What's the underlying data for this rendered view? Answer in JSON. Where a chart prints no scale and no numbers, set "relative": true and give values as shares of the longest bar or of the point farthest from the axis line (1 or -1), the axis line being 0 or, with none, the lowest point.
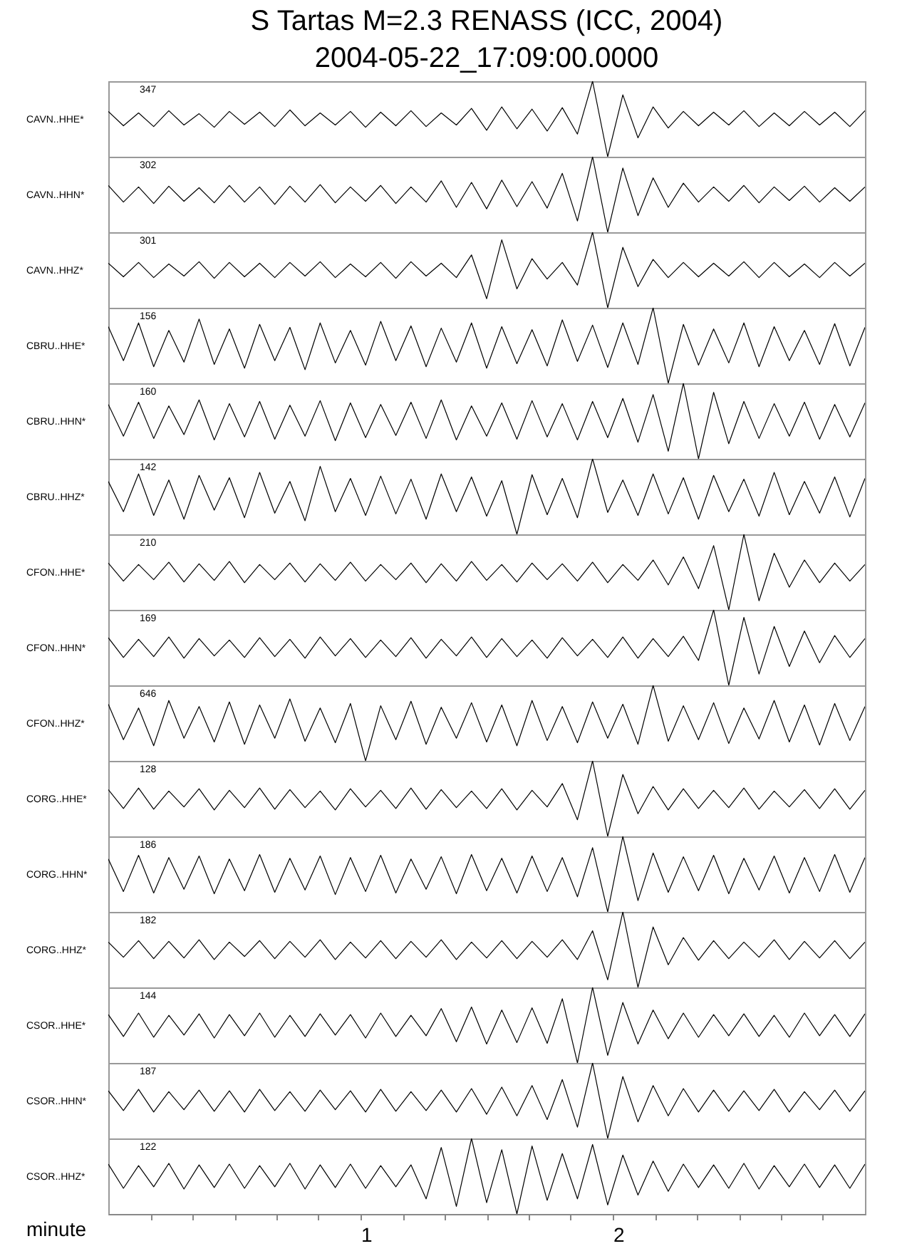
{
  "chart_data": [
    {
      "type": "line",
      "title": "S Tartas M=2.3 RENASS (ICC, 2004)",
      "subtitle": "2004-05-22_17:09:00.0000",
      "relative": true,
      "ylabel": "CAVN..HHE*",
      "annotations": [
        "347"
      ],
      "tick_labels": false,
      "xlim": [
        0,
        3
      ],
      "color": "#000000",
      "x": [
        0,
        0.06,
        0.12,
        0.18,
        0.24,
        0.3,
        0.36,
        0.42,
        0.48,
        0.54,
        0.6,
        0.66,
        0.72,
        0.78,
        0.84,
        0.9,
        0.96,
        1.02,
        1.08,
        1.14,
        1.2,
        1.26,
        1.32,
        1.38,
        1.44,
        1.5,
        1.56,
        1.62,
        1.68,
        1.74,
        1.8,
        1.86,
        1.92,
        1.98,
        2.04,
        2.1,
        2.16,
        2.22,
        2.28,
        2.34,
        2.4,
        2.46,
        2.52,
        2.58,
        2.64,
        2.7,
        2.76,
        2.82,
        2.88,
        2.94,
        3
      ],
      "values": [
        0.6,
        0.41,
        0.58,
        0.4,
        0.61,
        0.42,
        0.57,
        0.39,
        0.6,
        0.43,
        0.59,
        0.4,
        0.62,
        0.41,
        0.58,
        0.42,
        0.6,
        0.39,
        0.59,
        0.41,
        0.61,
        0.4,
        0.58,
        0.42,
        0.64,
        0.35,
        0.66,
        0.37,
        0.63,
        0.34,
        0.65,
        0.3,
        1.0,
        0.0,
        0.82,
        0.25,
        0.66,
        0.38,
        0.6,
        0.41,
        0.59,
        0.42,
        0.61,
        0.4,
        0.58,
        0.41,
        0.6,
        0.42,
        0.59,
        0.4,
        0.61
      ]
    },
    {
      "type": "line",
      "relative": true,
      "ylabel": "CAVN..HHN*",
      "annotations": [
        "302"
      ],
      "tick_labels": false,
      "xlim": [
        0,
        3
      ],
      "color": "#000000",
      "x": [
        0,
        0.06,
        0.12,
        0.18,
        0.24,
        0.3,
        0.36,
        0.42,
        0.48,
        0.54,
        0.6,
        0.66,
        0.72,
        0.78,
        0.84,
        0.9,
        0.96,
        1.02,
        1.08,
        1.14,
        1.2,
        1.26,
        1.32,
        1.38,
        1.44,
        1.5,
        1.56,
        1.62,
        1.68,
        1.74,
        1.8,
        1.86,
        1.92,
        1.98,
        2.04,
        2.1,
        2.16,
        2.22,
        2.28,
        2.34,
        2.4,
        2.46,
        2.52,
        2.58,
        2.64,
        2.7,
        2.76,
        2.82,
        2.88,
        2.94,
        3
      ],
      "values": [
        0.62,
        0.4,
        0.6,
        0.38,
        0.61,
        0.41,
        0.59,
        0.39,
        0.62,
        0.4,
        0.6,
        0.37,
        0.61,
        0.4,
        0.63,
        0.39,
        0.6,
        0.41,
        0.62,
        0.38,
        0.6,
        0.4,
        0.68,
        0.33,
        0.66,
        0.31,
        0.69,
        0.34,
        0.67,
        0.32,
        0.78,
        0.15,
        1.0,
        0.0,
        0.85,
        0.22,
        0.72,
        0.33,
        0.65,
        0.4,
        0.6,
        0.41,
        0.62,
        0.39,
        0.6,
        0.42,
        0.61,
        0.4,
        0.59,
        0.41,
        0.6
      ]
    },
    {
      "type": "line",
      "relative": true,
      "ylabel": "CAVN..HHZ*",
      "annotations": [
        "301"
      ],
      "tick_labels": false,
      "xlim": [
        0,
        3
      ],
      "color": "#000000",
      "x": [
        0,
        0.06,
        0.12,
        0.18,
        0.24,
        0.3,
        0.36,
        0.42,
        0.48,
        0.54,
        0.6,
        0.66,
        0.72,
        0.78,
        0.84,
        0.9,
        0.96,
        1.02,
        1.08,
        1.14,
        1.2,
        1.26,
        1.32,
        1.38,
        1.44,
        1.5,
        1.56,
        1.62,
        1.68,
        1.74,
        1.8,
        1.86,
        1.92,
        1.98,
        2.04,
        2.1,
        2.16,
        2.22,
        2.28,
        2.34,
        2.4,
        2.46,
        2.52,
        2.58,
        2.64,
        2.7,
        2.76,
        2.82,
        2.88,
        2.94,
        3
      ],
      "values": [
        0.59,
        0.41,
        0.6,
        0.4,
        0.58,
        0.42,
        0.61,
        0.39,
        0.6,
        0.41,
        0.59,
        0.4,
        0.6,
        0.42,
        0.61,
        0.4,
        0.58,
        0.41,
        0.6,
        0.39,
        0.61,
        0.42,
        0.59,
        0.4,
        0.7,
        0.12,
        0.9,
        0.25,
        0.65,
        0.38,
        0.6,
        0.3,
        1.0,
        0.0,
        0.8,
        0.28,
        0.64,
        0.4,
        0.6,
        0.41,
        0.59,
        0.42,
        0.61,
        0.4,
        0.6,
        0.41,
        0.58,
        0.4,
        0.6,
        0.42,
        0.59
      ]
    },
    {
      "type": "line",
      "relative": true,
      "ylabel": "CBRU..HHE*",
      "annotations": [
        "156"
      ],
      "tick_labels": false,
      "xlim": [
        0,
        3
      ],
      "color": "#000000",
      "x": [
        0,
        0.06,
        0.12,
        0.18,
        0.24,
        0.3,
        0.36,
        0.42,
        0.48,
        0.54,
        0.6,
        0.66,
        0.72,
        0.78,
        0.84,
        0.9,
        0.96,
        1.02,
        1.08,
        1.14,
        1.2,
        1.26,
        1.32,
        1.38,
        1.44,
        1.5,
        1.56,
        1.62,
        1.68,
        1.74,
        1.8,
        1.86,
        1.92,
        1.98,
        2.04,
        2.1,
        2.16,
        2.22,
        2.28,
        2.34,
        2.4,
        2.46,
        2.52,
        2.58,
        2.64,
        2.7,
        2.76,
        2.82,
        2.88,
        2.94,
        3
      ],
      "values": [
        0.75,
        0.3,
        0.8,
        0.22,
        0.7,
        0.28,
        0.85,
        0.25,
        0.72,
        0.2,
        0.78,
        0.3,
        0.74,
        0.18,
        0.8,
        0.27,
        0.7,
        0.24,
        0.82,
        0.3,
        0.76,
        0.22,
        0.73,
        0.28,
        0.8,
        0.2,
        0.75,
        0.26,
        0.71,
        0.23,
        0.84,
        0.29,
        0.77,
        0.21,
        0.8,
        0.25,
        1.0,
        0.0,
        0.78,
        0.24,
        0.72,
        0.27,
        0.8,
        0.22,
        0.75,
        0.3,
        0.7,
        0.25,
        0.79,
        0.23,
        0.74
      ]
    },
    {
      "type": "line",
      "relative": true,
      "ylabel": "CBRU..HHN*",
      "annotations": [
        "160"
      ],
      "tick_labels": false,
      "xlim": [
        0,
        3
      ],
      "color": "#000000",
      "x": [
        0,
        0.06,
        0.12,
        0.18,
        0.24,
        0.3,
        0.36,
        0.42,
        0.48,
        0.54,
        0.6,
        0.66,
        0.72,
        0.78,
        0.84,
        0.9,
        0.96,
        1.02,
        1.08,
        1.14,
        1.2,
        1.26,
        1.32,
        1.38,
        1.44,
        1.5,
        1.56,
        1.62,
        1.68,
        1.74,
        1.8,
        1.86,
        1.92,
        1.98,
        2.04,
        2.1,
        2.16,
        2.22,
        2.28,
        2.34,
        2.4,
        2.46,
        2.52,
        2.58,
        2.64,
        2.7,
        2.76,
        2.82,
        2.88,
        2.94,
        3
      ],
      "values": [
        0.72,
        0.3,
        0.75,
        0.27,
        0.7,
        0.32,
        0.78,
        0.25,
        0.73,
        0.29,
        0.76,
        0.26,
        0.71,
        0.3,
        0.77,
        0.24,
        0.74,
        0.28,
        0.72,
        0.31,
        0.75,
        0.27,
        0.78,
        0.25,
        0.7,
        0.3,
        0.74,
        0.26,
        0.77,
        0.29,
        0.73,
        0.25,
        0.76,
        0.28,
        0.8,
        0.22,
        0.85,
        0.1,
        1.0,
        0.0,
        0.88,
        0.2,
        0.76,
        0.27,
        0.73,
        0.3,
        0.75,
        0.26,
        0.72,
        0.29,
        0.74
      ]
    },
    {
      "type": "line",
      "relative": true,
      "ylabel": "CBRU..HHZ*",
      "annotations": [
        "142"
      ],
      "tick_labels": false,
      "xlim": [
        0,
        3
      ],
      "color": "#000000",
      "x": [
        0,
        0.06,
        0.12,
        0.18,
        0.24,
        0.3,
        0.36,
        0.42,
        0.48,
        0.54,
        0.6,
        0.66,
        0.72,
        0.78,
        0.84,
        0.9,
        0.96,
        1.02,
        1.08,
        1.14,
        1.2,
        1.26,
        1.32,
        1.38,
        1.44,
        1.5,
        1.56,
        1.62,
        1.68,
        1.74,
        1.8,
        1.86,
        1.92,
        1.98,
        2.04,
        2.1,
        2.16,
        2.22,
        2.28,
        2.34,
        2.4,
        2.46,
        2.52,
        2.58,
        2.64,
        2.7,
        2.76,
        2.82,
        2.88,
        2.94,
        3
      ],
      "values": [
        0.7,
        0.3,
        0.8,
        0.25,
        0.72,
        0.2,
        0.78,
        0.32,
        0.75,
        0.22,
        0.82,
        0.28,
        0.7,
        0.18,
        0.9,
        0.3,
        0.74,
        0.25,
        0.77,
        0.27,
        0.73,
        0.2,
        0.8,
        0.3,
        0.76,
        0.24,
        0.71,
        0.0,
        0.79,
        0.26,
        0.74,
        0.22,
        1.0,
        0.29,
        0.72,
        0.25,
        0.8,
        0.27,
        0.75,
        0.2,
        0.78,
        0.3,
        0.73,
        0.24,
        0.82,
        0.26,
        0.7,
        0.28,
        0.76,
        0.23,
        0.74
      ]
    },
    {
      "type": "line",
      "relative": true,
      "ylabel": "CFON..HHE*",
      "annotations": [
        "210"
      ],
      "tick_labels": false,
      "xlim": [
        0,
        3
      ],
      "color": "#000000",
      "x": [
        0,
        0.06,
        0.12,
        0.18,
        0.24,
        0.3,
        0.36,
        0.42,
        0.48,
        0.54,
        0.6,
        0.66,
        0.72,
        0.78,
        0.84,
        0.9,
        0.96,
        1.02,
        1.08,
        1.14,
        1.2,
        1.26,
        1.32,
        1.38,
        1.44,
        1.5,
        1.56,
        1.62,
        1.68,
        1.74,
        1.8,
        1.86,
        1.92,
        1.98,
        2.04,
        2.1,
        2.16,
        2.22,
        2.28,
        2.34,
        2.4,
        2.46,
        2.52,
        2.58,
        2.64,
        2.7,
        2.76,
        2.82,
        2.88,
        2.94,
        3
      ],
      "values": [
        0.62,
        0.38,
        0.6,
        0.4,
        0.63,
        0.37,
        0.61,
        0.39,
        0.64,
        0.36,
        0.6,
        0.4,
        0.62,
        0.37,
        0.61,
        0.39,
        0.63,
        0.38,
        0.6,
        0.4,
        0.62,
        0.36,
        0.61,
        0.38,
        0.64,
        0.39,
        0.6,
        0.37,
        0.62,
        0.4,
        0.61,
        0.38,
        0.63,
        0.36,
        0.6,
        0.39,
        0.66,
        0.33,
        0.7,
        0.28,
        0.85,
        0.0,
        1.0,
        0.12,
        0.75,
        0.3,
        0.66,
        0.36,
        0.62,
        0.38,
        0.6
      ]
    },
    {
      "type": "line",
      "relative": true,
      "ylabel": "CFON..HHN*",
      "annotations": [
        "169"
      ],
      "tick_labels": false,
      "xlim": [
        0,
        3
      ],
      "color": "#000000",
      "x": [
        0,
        0.06,
        0.12,
        0.18,
        0.24,
        0.3,
        0.36,
        0.42,
        0.48,
        0.54,
        0.6,
        0.66,
        0.72,
        0.78,
        0.84,
        0.9,
        0.96,
        1.02,
        1.08,
        1.14,
        1.2,
        1.26,
        1.32,
        1.38,
        1.44,
        1.5,
        1.56,
        1.62,
        1.68,
        1.74,
        1.8,
        1.86,
        1.92,
        1.98,
        2.04,
        2.1,
        2.16,
        2.22,
        2.28,
        2.34,
        2.4,
        2.46,
        2.52,
        2.58,
        2.64,
        2.7,
        2.76,
        2.82,
        2.88,
        2.94,
        3
      ],
      "values": [
        0.63,
        0.37,
        0.61,
        0.38,
        0.64,
        0.36,
        0.62,
        0.39,
        0.6,
        0.37,
        0.63,
        0.38,
        0.61,
        0.36,
        0.64,
        0.39,
        0.62,
        0.37,
        0.6,
        0.38,
        0.63,
        0.36,
        0.61,
        0.39,
        0.64,
        0.37,
        0.62,
        0.38,
        0.6,
        0.36,
        0.63,
        0.39,
        0.61,
        0.37,
        0.64,
        0.36,
        0.62,
        0.38,
        0.65,
        0.33,
        1.0,
        0.0,
        0.9,
        0.15,
        0.78,
        0.25,
        0.72,
        0.3,
        0.66,
        0.37,
        0.62
      ]
    },
    {
      "type": "line",
      "relative": true,
      "ylabel": "CFON..HHZ*",
      "annotations": [
        "646"
      ],
      "tick_labels": false,
      "xlim": [
        0,
        3
      ],
      "color": "#000000",
      "x": [
        0,
        0.06,
        0.12,
        0.18,
        0.24,
        0.3,
        0.36,
        0.42,
        0.48,
        0.54,
        0.6,
        0.66,
        0.72,
        0.78,
        0.84,
        0.9,
        0.96,
        1.02,
        1.08,
        1.14,
        1.2,
        1.26,
        1.32,
        1.38,
        1.44,
        1.5,
        1.56,
        1.62,
        1.68,
        1.74,
        1.8,
        1.86,
        1.92,
        1.98,
        2.04,
        2.1,
        2.16,
        2.22,
        2.28,
        2.34,
        2.4,
        2.46,
        2.52,
        2.58,
        2.64,
        2.7,
        2.76,
        2.82,
        2.88,
        2.94,
        3
      ],
      "values": [
        0.75,
        0.28,
        0.7,
        0.2,
        0.8,
        0.3,
        0.72,
        0.25,
        0.78,
        0.22,
        0.74,
        0.3,
        0.82,
        0.26,
        0.7,
        0.24,
        0.76,
        0.0,
        0.73,
        0.28,
        0.79,
        0.22,
        0.71,
        0.3,
        0.77,
        0.25,
        0.74,
        0.2,
        0.8,
        0.27,
        0.72,
        0.24,
        0.78,
        0.3,
        0.75,
        0.22,
        1.0,
        0.26,
        0.73,
        0.28,
        0.77,
        0.23,
        0.7,
        0.29,
        0.8,
        0.25,
        0.74,
        0.21,
        0.76,
        0.27,
        0.72
      ]
    },
    {
      "type": "line",
      "relative": true,
      "ylabel": "CORG..HHE*",
      "annotations": [
        "128"
      ],
      "tick_labels": false,
      "xlim": [
        0,
        3
      ],
      "color": "#000000",
      "x": [
        0,
        0.06,
        0.12,
        0.18,
        0.24,
        0.3,
        0.36,
        0.42,
        0.48,
        0.54,
        0.6,
        0.66,
        0.72,
        0.78,
        0.84,
        0.9,
        0.96,
        1.02,
        1.08,
        1.14,
        1.2,
        1.26,
        1.32,
        1.38,
        1.44,
        1.5,
        1.56,
        1.62,
        1.68,
        1.74,
        1.8,
        1.86,
        1.92,
        1.98,
        2.04,
        2.1,
        2.16,
        2.22,
        2.28,
        2.34,
        2.4,
        2.46,
        2.52,
        2.58,
        2.64,
        2.7,
        2.76,
        2.82,
        2.88,
        2.94,
        3
      ],
      "values": [
        0.62,
        0.37,
        0.64,
        0.36,
        0.6,
        0.39,
        0.63,
        0.35,
        0.61,
        0.38,
        0.64,
        0.36,
        0.62,
        0.38,
        0.6,
        0.35,
        0.63,
        0.39,
        0.61,
        0.37,
        0.64,
        0.36,
        0.62,
        0.38,
        0.6,
        0.37,
        0.63,
        0.35,
        0.61,
        0.39,
        0.7,
        0.22,
        1.0,
        0.0,
        0.82,
        0.3,
        0.66,
        0.35,
        0.63,
        0.37,
        0.61,
        0.38,
        0.64,
        0.36,
        0.6,
        0.39,
        0.62,
        0.37,
        0.63,
        0.36,
        0.61
      ]
    },
    {
      "type": "line",
      "relative": true,
      "ylabel": "CORG..HHN*",
      "annotations": [
        "186"
      ],
      "tick_labels": false,
      "xlim": [
        0,
        3
      ],
      "color": "#000000",
      "x": [
        0,
        0.06,
        0.12,
        0.18,
        0.24,
        0.3,
        0.36,
        0.42,
        0.48,
        0.54,
        0.6,
        0.66,
        0.72,
        0.78,
        0.84,
        0.9,
        0.96,
        1.02,
        1.08,
        1.14,
        1.2,
        1.26,
        1.32,
        1.38,
        1.44,
        1.5,
        1.56,
        1.62,
        1.68,
        1.74,
        1.8,
        1.86,
        1.92,
        1.98,
        2.04,
        2.1,
        2.16,
        2.22,
        2.28,
        2.34,
        2.4,
        2.46,
        2.52,
        2.58,
        2.64,
        2.7,
        2.76,
        2.82,
        2.88,
        2.94,
        3
      ],
      "values": [
        0.7,
        0.27,
        0.75,
        0.25,
        0.72,
        0.3,
        0.74,
        0.24,
        0.7,
        0.28,
        0.76,
        0.26,
        0.71,
        0.29,
        0.74,
        0.23,
        0.72,
        0.27,
        0.75,
        0.25,
        0.7,
        0.3,
        0.73,
        0.24,
        0.76,
        0.28,
        0.71,
        0.25,
        0.74,
        0.27,
        0.72,
        0.2,
        0.85,
        0.0,
        1.0,
        0.15,
        0.78,
        0.26,
        0.73,
        0.28,
        0.75,
        0.24,
        0.71,
        0.29,
        0.74,
        0.25,
        0.72,
        0.27,
        0.76,
        0.26,
        0.72
      ]
    },
    {
      "type": "line",
      "relative": true,
      "ylabel": "CORG..HHZ*",
      "annotations": [
        "182"
      ],
      "tick_labels": false,
      "xlim": [
        0,
        3
      ],
      "color": "#000000",
      "x": [
        0,
        0.06,
        0.12,
        0.18,
        0.24,
        0.3,
        0.36,
        0.42,
        0.48,
        0.54,
        0.6,
        0.66,
        0.72,
        0.78,
        0.84,
        0.9,
        0.96,
        1.02,
        1.08,
        1.14,
        1.2,
        1.26,
        1.32,
        1.38,
        1.44,
        1.5,
        1.56,
        1.62,
        1.68,
        1.74,
        1.8,
        1.86,
        1.92,
        1.98,
        2.04,
        2.1,
        2.16,
        2.22,
        2.28,
        2.34,
        2.4,
        2.46,
        2.52,
        2.58,
        2.64,
        2.7,
        2.76,
        2.82,
        2.88,
        2.94,
        3
      ],
      "values": [
        0.6,
        0.4,
        0.62,
        0.38,
        0.61,
        0.39,
        0.63,
        0.37,
        0.6,
        0.41,
        0.62,
        0.38,
        0.61,
        0.4,
        0.63,
        0.37,
        0.6,
        0.39,
        0.62,
        0.38,
        0.61,
        0.4,
        0.63,
        0.37,
        0.6,
        0.39,
        0.62,
        0.38,
        0.61,
        0.4,
        0.63,
        0.37,
        0.75,
        0.1,
        1.0,
        0.0,
        0.8,
        0.3,
        0.66,
        0.36,
        0.62,
        0.38,
        0.6,
        0.4,
        0.63,
        0.37,
        0.61,
        0.39,
        0.62,
        0.38,
        0.6
      ]
    },
    {
      "type": "line",
      "relative": true,
      "ylabel": "CSOR..HHE*",
      "annotations": [
        "144"
      ],
      "tick_labels": false,
      "xlim": [
        0,
        3
      ],
      "color": "#000000",
      "x": [
        0,
        0.06,
        0.12,
        0.18,
        0.24,
        0.3,
        0.36,
        0.42,
        0.48,
        0.54,
        0.6,
        0.66,
        0.72,
        0.78,
        0.84,
        0.9,
        0.96,
        1.02,
        1.08,
        1.14,
        1.2,
        1.26,
        1.32,
        1.38,
        1.44,
        1.5,
        1.56,
        1.62,
        1.68,
        1.74,
        1.8,
        1.86,
        1.92,
        1.98,
        2.04,
        2.1,
        2.16,
        2.22,
        2.28,
        2.34,
        2.4,
        2.46,
        2.52,
        2.58,
        2.64,
        2.7,
        2.76,
        2.82,
        2.88,
        2.94,
        3
      ],
      "values": [
        0.64,
        0.35,
        0.66,
        0.34,
        0.63,
        0.37,
        0.65,
        0.33,
        0.64,
        0.36,
        0.66,
        0.34,
        0.63,
        0.35,
        0.65,
        0.37,
        0.64,
        0.33,
        0.66,
        0.35,
        0.63,
        0.36,
        0.72,
        0.28,
        0.74,
        0.25,
        0.7,
        0.27,
        0.73,
        0.26,
        0.85,
        0.0,
        1.0,
        0.1,
        0.8,
        0.25,
        0.7,
        0.32,
        0.66,
        0.34,
        0.64,
        0.36,
        0.65,
        0.35,
        0.63,
        0.34,
        0.66,
        0.36,
        0.64,
        0.35,
        0.65
      ]
    },
    {
      "type": "line",
      "relative": true,
      "ylabel": "CSOR..HHN*",
      "annotations": [
        "187"
      ],
      "tick_labels": false,
      "xlim": [
        0,
        3
      ],
      "color": "#000000",
      "x": [
        0,
        0.06,
        0.12,
        0.18,
        0.24,
        0.3,
        0.36,
        0.42,
        0.48,
        0.54,
        0.6,
        0.66,
        0.72,
        0.78,
        0.84,
        0.9,
        0.96,
        1.02,
        1.08,
        1.14,
        1.2,
        1.26,
        1.32,
        1.38,
        1.44,
        1.5,
        1.56,
        1.62,
        1.68,
        1.74,
        1.8,
        1.86,
        1.92,
        1.98,
        2.04,
        2.1,
        2.16,
        2.22,
        2.28,
        2.34,
        2.4,
        2.46,
        2.52,
        2.58,
        2.64,
        2.7,
        2.76,
        2.82,
        2.88,
        2.94,
        3
      ],
      "values": [
        0.63,
        0.37,
        0.65,
        0.35,
        0.62,
        0.38,
        0.64,
        0.36,
        0.63,
        0.35,
        0.65,
        0.37,
        0.62,
        0.36,
        0.64,
        0.38,
        0.63,
        0.35,
        0.65,
        0.36,
        0.62,
        0.37,
        0.64,
        0.35,
        0.66,
        0.32,
        0.68,
        0.3,
        0.7,
        0.25,
        0.78,
        0.15,
        1.0,
        0.0,
        0.82,
        0.22,
        0.7,
        0.3,
        0.66,
        0.35,
        0.64,
        0.36,
        0.63,
        0.37,
        0.65,
        0.35,
        0.62,
        0.38,
        0.64,
        0.36,
        0.63
      ]
    },
    {
      "type": "line",
      "relative": true,
      "ylabel": "CSOR..HHZ*",
      "annotations": [
        "122"
      ],
      "tick_labels": "x",
      "xlabel": "minute",
      "xlim": [
        0,
        3
      ],
      "color": "#000000",
      "x": [
        0,
        0.06,
        0.12,
        0.18,
        0.24,
        0.3,
        0.36,
        0.42,
        0.48,
        0.54,
        0.6,
        0.66,
        0.72,
        0.78,
        0.84,
        0.9,
        0.96,
        1.02,
        1.08,
        1.14,
        1.2,
        1.26,
        1.32,
        1.38,
        1.44,
        1.5,
        1.56,
        1.62,
        1.68,
        1.74,
        1.8,
        1.86,
        1.92,
        1.98,
        2.04,
        2.1,
        2.16,
        2.22,
        2.28,
        2.34,
        2.4,
        2.46,
        2.52,
        2.58,
        2.64,
        2.7,
        2.76,
        2.82,
        2.88,
        2.94,
        3
      ],
      "values": [
        0.66,
        0.34,
        0.64,
        0.36,
        0.67,
        0.33,
        0.65,
        0.35,
        0.66,
        0.34,
        0.64,
        0.36,
        0.67,
        0.33,
        0.65,
        0.35,
        0.66,
        0.34,
        0.64,
        0.36,
        0.65,
        0.2,
        0.88,
        0.1,
        1.0,
        0.15,
        0.85,
        0.0,
        0.9,
        0.18,
        0.8,
        0.2,
        0.92,
        0.12,
        0.78,
        0.25,
        0.7,
        0.3,
        0.66,
        0.35,
        0.65,
        0.34,
        0.67,
        0.33,
        0.64,
        0.36,
        0.66,
        0.35,
        0.65,
        0.34,
        0.66
      ],
      "xticks": [
        {
          "value": 0.167,
          "label": null
        },
        {
          "value": 0.333,
          "label": null
        },
        {
          "value": 0.5,
          "label": null
        },
        {
          "value": 0.667,
          "label": null
        },
        {
          "value": 0.833,
          "label": null
        },
        1,
        {
          "value": 1.167,
          "label": null
        },
        {
          "value": 1.333,
          "label": null
        },
        {
          "value": 1.5,
          "label": null
        },
        {
          "value": 1.667,
          "label": null
        },
        {
          "value": 1.833,
          "label": null
        },
        2,
        {
          "value": 2.167,
          "label": null
        },
        {
          "value": 2.333,
          "label": null
        },
        {
          "value": 2.5,
          "label": null
        },
        {
          "value": 2.667,
          "label": null
        },
        {
          "value": 2.833,
          "label": null
        }
      ]
    }
  ]
}
